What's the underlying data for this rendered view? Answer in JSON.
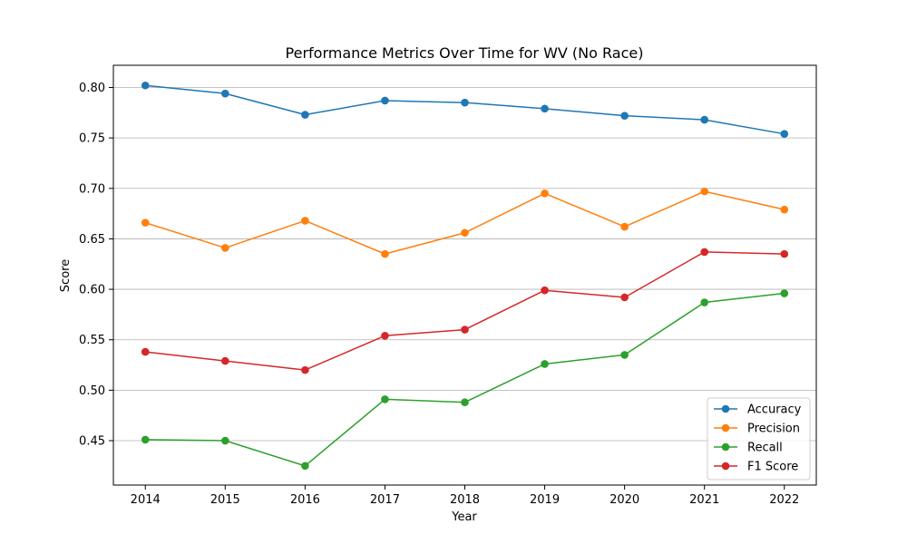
{
  "chart_data": {
    "type": "line",
    "title": "Performance Metrics Over Time for WV (No Race)",
    "xlabel": "Year",
    "ylabel": "Score",
    "x": [
      2014,
      2015,
      2016,
      2017,
      2018,
      2019,
      2020,
      2021,
      2022
    ],
    "x_tick_labels": [
      "2014",
      "2015",
      "2016",
      "2017",
      "2018",
      "2019",
      "2020",
      "2021",
      "2022"
    ],
    "y_ticks": [
      0.45,
      0.5,
      0.55,
      0.6,
      0.65,
      0.7,
      0.75,
      0.8
    ],
    "y_tick_labels": [
      "0.45",
      "0.50",
      "0.55",
      "0.60",
      "0.65",
      "0.70",
      "0.75",
      "0.80"
    ],
    "xlim": [
      2013.6,
      2022.4
    ],
    "ylim": [
      0.406,
      0.822
    ],
    "grid": "horizontal",
    "legend_position": "lower-right",
    "series": [
      {
        "name": "Accuracy",
        "color": "#1f77b4",
        "values": [
          0.802,
          0.794,
          0.773,
          0.787,
          0.785,
          0.779,
          0.772,
          0.768,
          0.754
        ]
      },
      {
        "name": "Precision",
        "color": "#ff7f0e",
        "values": [
          0.666,
          0.641,
          0.668,
          0.635,
          0.656,
          0.695,
          0.662,
          0.697,
          0.679
        ]
      },
      {
        "name": "Recall",
        "color": "#2ca02c",
        "values": [
          0.451,
          0.45,
          0.425,
          0.491,
          0.488,
          0.526,
          0.535,
          0.587,
          0.596
        ]
      },
      {
        "name": "F1 Score",
        "color": "#d62728",
        "values": [
          0.538,
          0.529,
          0.52,
          0.554,
          0.56,
          0.599,
          0.592,
          0.637,
          0.635
        ]
      }
    ]
  }
}
